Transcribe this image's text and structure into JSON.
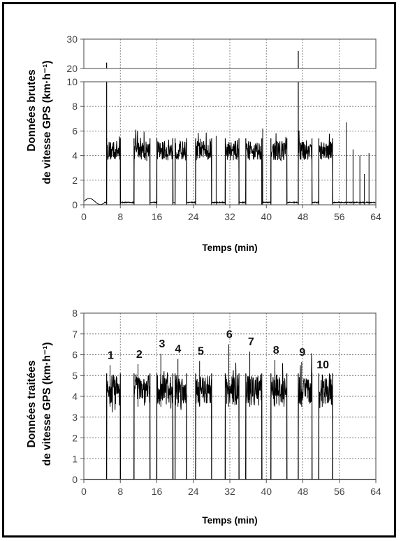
{
  "chart_data": [
    {
      "type": "line",
      "name": "raw",
      "ylabel_line1": "Données brutes",
      "ylabel_line2": "de vitesse GPS (km·h⁻¹)",
      "xlabel": "Temps (min)",
      "xlim": [
        0,
        64
      ],
      "x_ticks": [
        "0",
        "8",
        "16",
        "24",
        "32",
        "40",
        "48",
        "56",
        "64"
      ],
      "y_ticks_lower": [
        "0",
        "2",
        "4",
        "6",
        "8",
        "10"
      ],
      "y_ticks_upper": [
        "20",
        "30"
      ],
      "ylim_lower": [
        0,
        10
      ],
      "ylim_upper": [
        20,
        30
      ],
      "grid": true,
      "bouts": [
        [
          5.0,
          8.0
        ],
        [
          11.0,
          14.5
        ],
        [
          16.0,
          19.5
        ],
        [
          20.0,
          22.5
        ],
        [
          24.5,
          28.0
        ],
        [
          31.0,
          34.0
        ],
        [
          35.5,
          39.0
        ],
        [
          41.0,
          44.5
        ],
        [
          47.0,
          50.0
        ],
        [
          51.5,
          54.5
        ]
      ],
      "spikes": [
        [
          5.0,
          22.0
        ],
        [
          47.0,
          26.0
        ],
        [
          29.0,
          5.6
        ],
        [
          39.2,
          6.2
        ],
        [
          57.5,
          6.7
        ],
        [
          59.0,
          4.5
        ],
        [
          60.5,
          4.0
        ],
        [
          61.5,
          2.5
        ],
        [
          62.5,
          4.2
        ]
      ],
      "rest_level": 0.15,
      "bout_level": 4.4
    },
    {
      "type": "line",
      "name": "processed",
      "ylabel_line1": "Données traitées",
      "ylabel_line2": "de vitesse GPS (km·h⁻¹)",
      "xlabel": "Temps (min)",
      "xlim": [
        0,
        64
      ],
      "ylim": [
        0,
        8
      ],
      "x_ticks": [
        "0",
        "8",
        "16",
        "24",
        "32",
        "40",
        "48",
        "56",
        "64"
      ],
      "y_ticks": [
        "0",
        "1",
        "2",
        "3",
        "4",
        "5",
        "6",
        "7",
        "8"
      ],
      "grid": true,
      "bouts": [
        [
          5.0,
          8.0
        ],
        [
          11.0,
          14.5
        ],
        [
          16.0,
          19.5
        ],
        [
          20.0,
          22.5
        ],
        [
          24.5,
          28.0
        ],
        [
          31.0,
          34.0
        ],
        [
          35.5,
          39.0
        ],
        [
          41.0,
          44.5
        ],
        [
          47.0,
          50.0
        ],
        [
          51.5,
          54.5
        ]
      ],
      "bout_labels": [
        "1",
        "2",
        "3",
        "4",
        "5",
        "6",
        "7",
        "8",
        "9",
        "10"
      ],
      "bout_label_y": [
        5.8,
        5.85,
        6.35,
        6.1,
        6.0,
        6.8,
        6.45,
        6.05,
        5.95,
        5.35
      ],
      "bout_level": 4.3
    }
  ]
}
